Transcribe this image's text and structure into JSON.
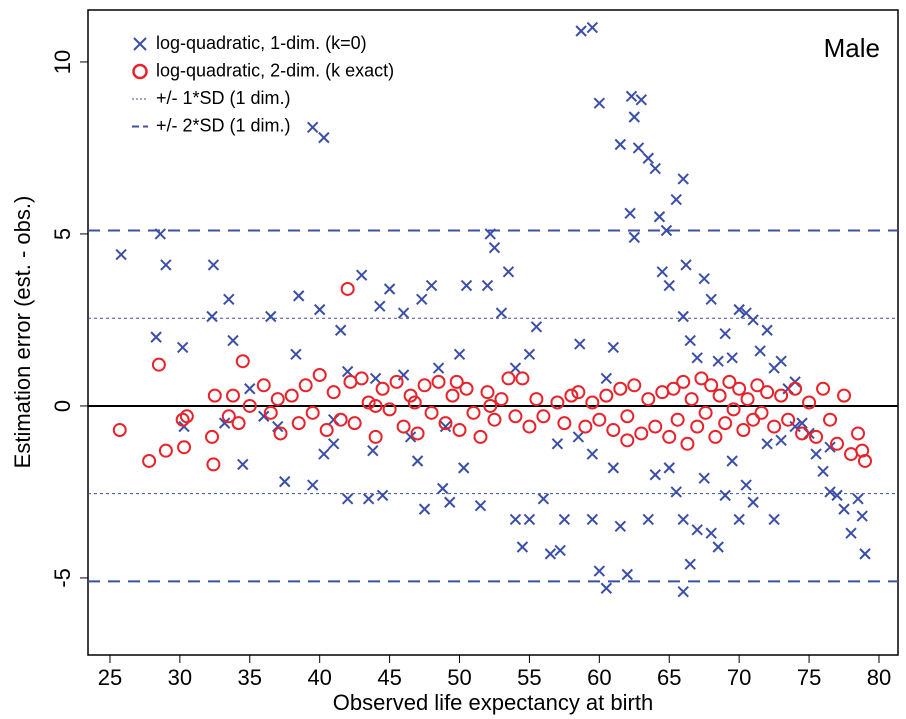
{
  "chart_data": {
    "type": "scatter",
    "annotation": "Male",
    "xlabel": "Observed life expectancy at birth",
    "ylabel": "Estimation error (est. - obs.)",
    "xlim": [
      23.43,
      81.36
    ],
    "ylim": [
      -7.24,
      11.51
    ],
    "xticks": [
      25,
      30,
      35,
      40,
      45,
      50,
      55,
      60,
      65,
      70,
      75,
      80
    ],
    "yticks": [
      -5,
      0,
      5,
      10
    ],
    "legend": "top-left",
    "series": [
      {
        "name": "log-quadratic, 1-dim. (k=0)",
        "color": "#3b4fa6",
        "marker": "x",
        "x": [
          25.8,
          28.6,
          29,
          28.3,
          30.2,
          30.3,
          32.4,
          32.3,
          33.5,
          33.8,
          33.2,
          34.5,
          36.5,
          37,
          37.5,
          38.5,
          38.3,
          39.5,
          40.3,
          40,
          39.5,
          40.3,
          41,
          41.5,
          42,
          43,
          43.5,
          43.8,
          44.3,
          44.5,
          45,
          46,
          46.5,
          47,
          47.3,
          47.5,
          48,
          48.5,
          48.8,
          49.3,
          50.5,
          50.3,
          51.5,
          52,
          52.2,
          52.5,
          53,
          53.5,
          54,
          54.5,
          55,
          55.5,
          56,
          56.5,
          57.2,
          57.5,
          58.7,
          59.5,
          58.6,
          59.5,
          60,
          60,
          60.5,
          61,
          61.5,
          62,
          62.3,
          62.5,
          62.8,
          63,
          63.5,
          62.2,
          62.5,
          64,
          64.3,
          64.8,
          64.5,
          65,
          65.5,
          66,
          66.2,
          66,
          66.5,
          67,
          67.5,
          68,
          68.5,
          69,
          69.5,
          70,
          70.5,
          71,
          71.5,
          72,
          72.5,
          73,
          73.5,
          74,
          75,
          75.5,
          76,
          76.5,
          77,
          77.5,
          78,
          78.5,
          79,
          78.8,
          65,
          65.5,
          66,
          66.5,
          67,
          67.5,
          68,
          68.5,
          69,
          69.5,
          70,
          70.5,
          71,
          72,
          73,
          74,
          63.5,
          64,
          61.5,
          61,
          60.5,
          59.5,
          58.5,
          57,
          55,
          54,
          50,
          49,
          46,
          44,
          42,
          41,
          36,
          35,
          66,
          72.5,
          74.5,
          76.5
        ],
        "values": [
          4.4,
          5.0,
          4.1,
          2.0,
          1.7,
          -0.6,
          4.1,
          2.6,
          3.1,
          1.9,
          -0.5,
          -1.7,
          2.6,
          -0.6,
          -2.2,
          3.2,
          1.5,
          8.1,
          7.8,
          2.8,
          -2.3,
          -1.4,
          -1.1,
          2.2,
          -2.7,
          3.8,
          -2.7,
          -1.3,
          2.9,
          -2.6,
          3.4,
          2.7,
          -0.9,
          -1.6,
          3.1,
          -3.0,
          3.5,
          1.1,
          -2.4,
          -2.8,
          3.5,
          -1.8,
          -2.9,
          3.5,
          5.0,
          4.6,
          2.7,
          3.9,
          -3.3,
          -4.1,
          -3.3,
          2.3,
          -2.7,
          -4.3,
          -4.2,
          -3.3,
          10.9,
          11.0,
          1.8,
          -3.3,
          8.8,
          -4.8,
          -5.3,
          1.7,
          7.6,
          -4.9,
          9.0,
          8.4,
          7.5,
          8.9,
          7.2,
          5.6,
          4.9,
          6.9,
          5.5,
          5.1,
          3.9,
          3.5,
          6.0,
          6.6,
          4.1,
          2.6,
          1.9,
          1.4,
          3.7,
          3.1,
          1.3,
          2.1,
          1.4,
          2.8,
          2.7,
          2.5,
          1.6,
          2.2,
          1.1,
          1.3,
          0.5,
          0.7,
          -0.8,
          -1.4,
          -1.9,
          -2.5,
          -2.6,
          -3.0,
          -3.7,
          -2.7,
          -4.3,
          -3.2,
          -1.8,
          -2.5,
          -3.3,
          -4.6,
          -3.6,
          -2.1,
          -3.7,
          -4.1,
          -2.6,
          -1.6,
          -3.3,
          -2.3,
          -2.8,
          -1.1,
          -1.0,
          -0.6,
          -3.3,
          -2.0,
          -3.5,
          -1.8,
          0.8,
          -1.4,
          -0.9,
          -1.1,
          1.5,
          1.1,
          1.5,
          -0.6,
          0.9,
          0.8,
          1.0,
          -0.4,
          -0.3,
          0.5,
          -5.4,
          -3.3,
          -0.5,
          -1.2
        ]
      },
      {
        "name": "log-quadratic, 2-dim. (k exact)",
        "color": "#e8232b",
        "marker": "circle",
        "x": [
          25.7,
          27.8,
          28.5,
          29,
          30.2,
          30.3,
          30.5,
          32.3,
          32.4,
          32.5,
          33.5,
          33.8,
          34.2,
          34.5,
          35,
          36,
          36.5,
          37,
          37.2,
          38,
          38.5,
          39,
          39.5,
          40,
          40.5,
          41,
          41.5,
          42,
          42.2,
          42.5,
          43,
          43.5,
          44,
          44.5,
          45,
          45.5,
          46,
          46.5,
          47,
          47.5,
          48,
          48.5,
          49,
          49.5,
          50,
          50.5,
          51,
          51.5,
          52,
          52.5,
          53,
          53.5,
          54,
          54.5,
          55,
          55.5,
          56,
          57,
          57.5,
          58.5,
          59,
          59.5,
          60,
          60.5,
          61,
          61.5,
          62,
          62.5,
          63,
          63.5,
          64,
          64.5,
          65,
          65.3,
          65.6,
          66,
          66.3,
          66.6,
          67,
          67.3,
          67.6,
          68,
          68.3,
          68.6,
          69,
          69.3,
          69.6,
          70,
          70.3,
          70.6,
          71,
          71.3,
          71.6,
          72,
          72.5,
          73,
          73.5,
          74,
          74.5,
          75,
          75.5,
          76,
          76.5,
          77,
          77.5,
          78,
          78.5,
          79,
          78.8,
          62,
          58,
          49.8,
          44,
          46.8,
          52.2
        ],
        "values": [
          -0.7,
          -1.6,
          1.2,
          -1.3,
          -0.4,
          -1.2,
          -0.3,
          -0.9,
          -1.7,
          0.3,
          -0.3,
          0.3,
          -0.5,
          1.3,
          0.0,
          0.6,
          -0.2,
          0.2,
          -0.8,
          0.3,
          -0.5,
          0.6,
          -0.2,
          0.9,
          -0.7,
          0.4,
          -0.4,
          3.4,
          0.7,
          -0.5,
          0.8,
          0.1,
          -0.9,
          0.5,
          -0.1,
          0.7,
          -0.6,
          0.3,
          -0.8,
          0.6,
          -0.2,
          0.7,
          -0.5,
          0.3,
          -0.7,
          0.5,
          -0.2,
          -0.9,
          0.4,
          -0.4,
          0.2,
          0.8,
          -0.3,
          0.8,
          -0.6,
          0.2,
          -0.3,
          0.1,
          -0.5,
          0.4,
          -0.6,
          0.1,
          -0.4,
          0.3,
          -0.7,
          0.5,
          -0.3,
          0.6,
          -0.8,
          0.2,
          -0.6,
          0.4,
          -0.9,
          0.5,
          -0.4,
          0.7,
          -1.1,
          0.2,
          -0.6,
          0.8,
          -0.2,
          0.6,
          -0.9,
          0.3,
          -0.5,
          0.7,
          -0.1,
          0.5,
          -0.7,
          0.2,
          -0.4,
          0.6,
          -0.2,
          0.4,
          -0.6,
          0.3,
          -0.4,
          0.5,
          -0.8,
          0.1,
          -0.9,
          0.5,
          -0.4,
          -1.1,
          0.3,
          -1.4,
          -0.8,
          -1.6,
          -1.3,
          -1.0,
          0.3,
          0.7,
          0.0,
          0.1,
          0.0
        ]
      },
      {
        "name": "+/- 1*SD (1 dim.)",
        "color": "#3b4fa6",
        "marker": "hline",
        "dash": "dotted",
        "values": [
          2.55,
          -2.55
        ]
      },
      {
        "name": "+/- 2*SD (1 dim.)",
        "color": "#3b4fa6",
        "marker": "hline",
        "dash": "dashed",
        "values": [
          5.1,
          -5.1
        ]
      }
    ]
  }
}
